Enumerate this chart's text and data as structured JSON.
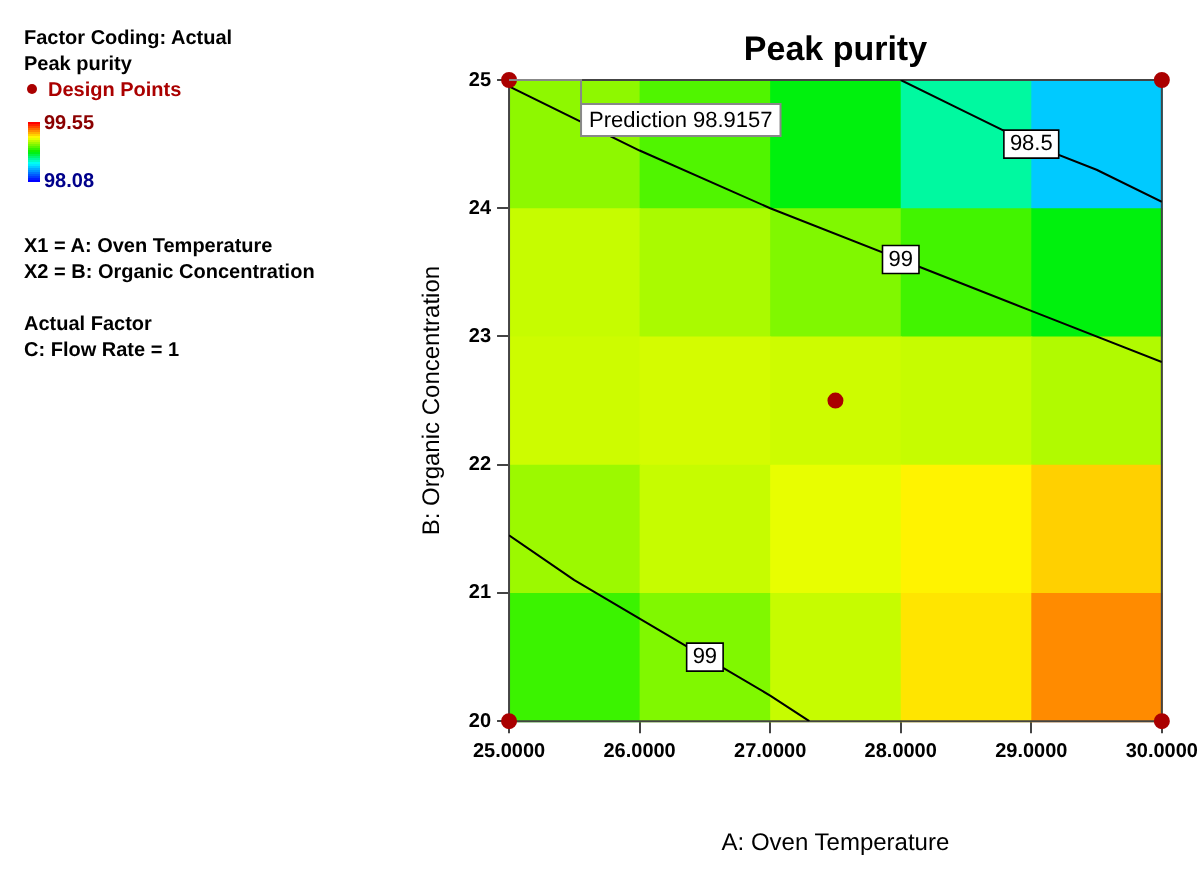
{
  "chart_data": {
    "type": "heatmap",
    "title": "Peak purity",
    "xlabel": "A: Oven Temperature",
    "ylabel": "B: Organic Concentration",
    "clabel": "Peak purity",
    "annotations": [
      "Factor Coding: Actual",
      "X1 = A: Oven Temperature",
      "X2 = B: Organic Concentration",
      "Actual Factor",
      "C: Flow Rate = 1",
      {
        "text": "Prediction 98.9157",
        "x": 25,
        "y": 25
      }
    ],
    "xlim": [
      25,
      30
    ],
    "ylim": [
      20,
      25
    ],
    "xticks": [
      {
        "value": 25,
        "label": "25.0000"
      },
      {
        "value": 26,
        "label": "26.0000"
      },
      {
        "value": 27,
        "label": "27.0000"
      },
      {
        "value": 28,
        "label": "28.0000"
      },
      {
        "value": 29,
        "label": "29.0000"
      },
      {
        "value": 30,
        "label": "30.0000"
      }
    ],
    "yticks": [
      20,
      21,
      22,
      23,
      24,
      25
    ],
    "cells": [
      [
        99.02,
        98.93,
        98.8,
        98.63,
        98.43
      ],
      [
        99.1,
        99.06,
        99.0,
        98.91,
        98.8
      ],
      [
        99.11,
        99.12,
        99.11,
        99.1,
        99.07
      ],
      [
        99.04,
        99.1,
        99.15,
        99.2,
        99.25
      ],
      [
        98.9,
        99.0,
        99.1,
        99.22,
        99.35
      ]
    ],
    "clim": [
      98.08,
      99.55
    ],
    "cticks": [
      98.08,
      99.55
    ],
    "series": [
      {
        "type": "scatter",
        "name": "Design Points",
        "color": "#aa0000",
        "marker": "circle",
        "x": [
          25,
          30,
          25,
          30,
          27.5
        ],
        "values": [
          20,
          20,
          25,
          25,
          22.5
        ]
      },
      {
        "type": "line",
        "name": "99",
        "color": "#000000",
        "x": [
          25,
          26,
          27,
          28,
          29,
          30
        ],
        "values": [
          24.95,
          24.45,
          24.0,
          23.6,
          23.2,
          22.8
        ]
      },
      {
        "type": "line",
        "name": "99",
        "color": "#000000",
        "x": [
          25,
          25.5,
          26,
          26.5,
          27,
          27.3
        ],
        "values": [
          21.45,
          21.1,
          20.8,
          20.5,
          20.2,
          20
        ]
      },
      {
        "type": "line",
        "name": "98.5",
        "color": "#000000",
        "x": [
          28.0,
          28.5,
          29,
          29.5,
          30
        ],
        "values": [
          25,
          24.75,
          24.5,
          24.3,
          24.05
        ]
      }
    ],
    "grid": false,
    "legend": "left"
  }
}
